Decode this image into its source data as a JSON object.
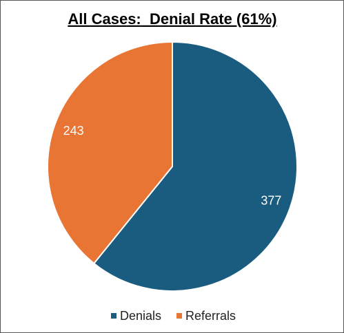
{
  "chart_data": {
    "type": "pie",
    "title": "All Cases:  Denial Rate (61%)",
    "categories": [
      "Denials",
      "Referrals"
    ],
    "values": [
      377,
      243
    ],
    "colors": [
      "#1a5c80",
      "#e87534"
    ],
    "legend": "bottom"
  }
}
